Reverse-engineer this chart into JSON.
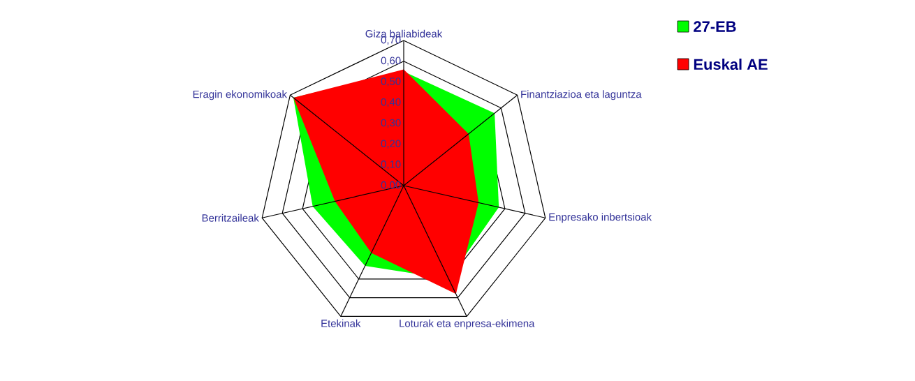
{
  "chart_data": {
    "type": "radar",
    "categories": [
      "Giza baliabideak",
      "Finantziazioa eta laguntza",
      "Enpresako inbertsioak",
      "Loturak eta enpresa-ekimena",
      "Etekinak",
      "Berritzaileak",
      "Eragin ekonomikoak"
    ],
    "series": [
      {
        "name": "27-EB",
        "color": "#00ff00",
        "values": [
          0.55,
          0.56,
          0.47,
          0.5,
          0.43,
          0.45,
          0.68
        ]
      },
      {
        "name": "Euskal AE",
        "color": "#ff0000",
        "values": [
          0.56,
          0.4,
          0.37,
          0.58,
          0.36,
          0.34,
          0.68
        ]
      }
    ],
    "ylim": [
      0,
      0.7
    ],
    "yticks": [
      {
        "value": 0,
        "label": "0,00"
      },
      {
        "value": 0.1,
        "label": "0,10"
      },
      {
        "value": 0.2,
        "label": "0,20"
      },
      {
        "value": 0.3,
        "label": "0,30"
      },
      {
        "value": 0.4,
        "label": "0,40"
      },
      {
        "value": 0.5,
        "label": "0,50"
      },
      {
        "value": 0.6,
        "label": "0,60"
      },
      {
        "value": 0.7,
        "label": "0,70"
      }
    ],
    "legend": "top right"
  }
}
